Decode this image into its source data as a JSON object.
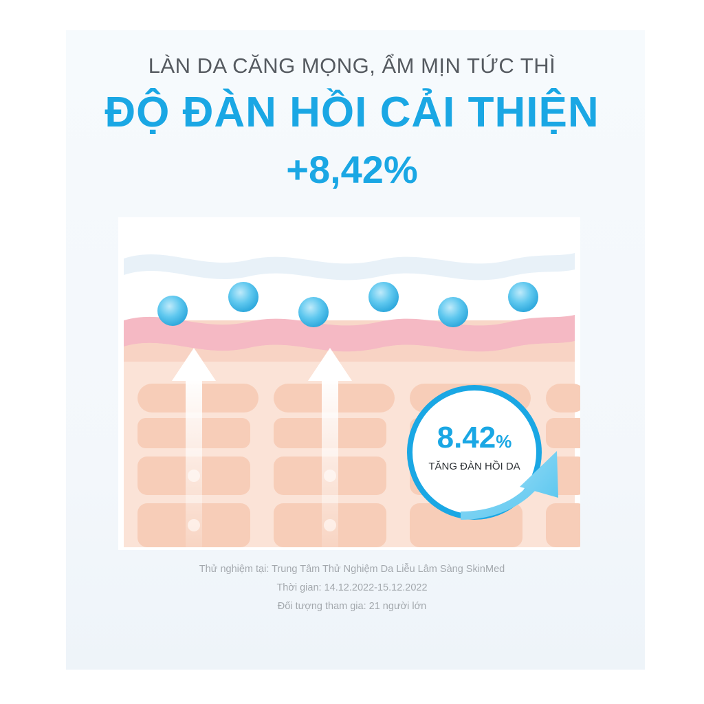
{
  "header": {
    "subtitle": "LÀN DA CĂNG MỌNG, ẨM MỊN TỨC THÌ",
    "headline": "ĐỘ ĐÀN HỒI CẢI THIỆN",
    "percent": "+8,42%"
  },
  "badge": {
    "value": "8.42",
    "unit": "%",
    "label": "TĂNG ĐÀN HỒI DA"
  },
  "footnotes": [
    "Thử nghiệm tại: Trung Tâm Thử Nghiệm Da Liễu Lâm Sàng SkinMed",
    "Thời gian: 14.12.2022-15.12.2022",
    "Đối tượng tham gia: 21 người lớn"
  ],
  "colors": {
    "accent": "#1aa7e4",
    "skin": "#f8d7c8",
    "skin_cell": "#f9c9b2",
    "pink_layer": "#f5b9c4",
    "droplet": "#5fc8ef"
  },
  "icons": [
    "up-arrow-icon",
    "curved-arrow-icon",
    "water-droplet-icon"
  ]
}
